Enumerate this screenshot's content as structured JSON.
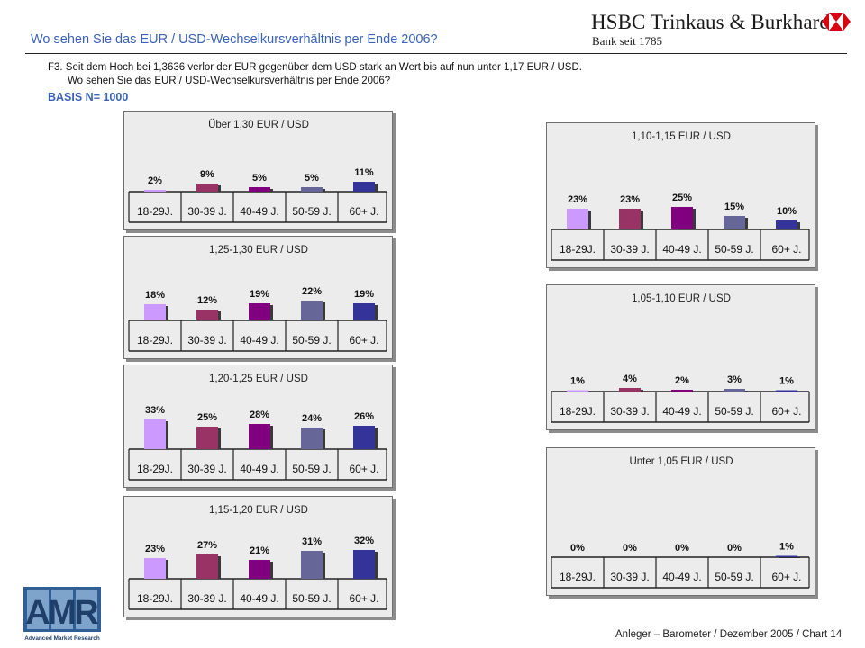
{
  "header": {
    "title": "Wo sehen Sie das EUR / USD-Wechselkursverhältnis per Ende 2006?",
    "brand_name": "HSBC Trinkaus & Burkhardt",
    "brand_sub": "Bank seit 1785",
    "brand_color": "#db0011"
  },
  "question": {
    "line1": "F3. Seit dem Hoch bei 1,3636 verlor der EUR gegenüber dem USD stark an Wert bis auf nun unter 1,17 EUR / USD.",
    "line2": "Wo sehen Sie das EUR / USD-Wechselkursverhältnis  per Ende 2006?",
    "basis": "BASIS N= 1000"
  },
  "footer": {
    "text": "Anleger – Barometer  / Dezember 2005 / Chart 14",
    "amr_logo": "AMR",
    "amr_sub": "Advanced Market Research"
  },
  "colors": [
    "#cc99ff",
    "#993366",
    "#800080",
    "#666699",
    "#333399"
  ],
  "chart_data": [
    {
      "type": "bar",
      "title": "Über 1,30 EUR / USD",
      "categories": [
        "18-29J.",
        "30-39 J.",
        "40-49 J.",
        "50-59 J.",
        "60+ J."
      ],
      "values": [
        2,
        9,
        5,
        5,
        11
      ],
      "labels": [
        "2%",
        "9%",
        "5%",
        "5%",
        "11%"
      ]
    },
    {
      "type": "bar",
      "title": "1,25-1,30 EUR / USD",
      "categories": [
        "18-29J.",
        "30-39 J.",
        "40-49 J.",
        "50-59 J.",
        "60+ J."
      ],
      "values": [
        18,
        12,
        19,
        22,
        19
      ],
      "labels": [
        "18%",
        "12%",
        "19%",
        "22%",
        "19%"
      ]
    },
    {
      "type": "bar",
      "title": "1,20-1,25 EUR / USD",
      "categories": [
        "18-29J.",
        "30-39 J.",
        "40-49 J.",
        "50-59 J.",
        "60+ J."
      ],
      "values": [
        33,
        25,
        28,
        24,
        26
      ],
      "labels": [
        "33%",
        "25%",
        "28%",
        "24%",
        "26%"
      ]
    },
    {
      "type": "bar",
      "title": "1,15-1,20 EUR / USD",
      "categories": [
        "18-29J.",
        "30-39 J.",
        "40-49 J.",
        "50-59 J.",
        "60+ J."
      ],
      "values": [
        23,
        27,
        21,
        31,
        32
      ],
      "labels": [
        "23%",
        "27%",
        "21%",
        "31%",
        "32%"
      ]
    },
    {
      "type": "bar",
      "title": "1,10-1,15 EUR / USD",
      "categories": [
        "18-29J.",
        "30-39 J.",
        "40-49 J.",
        "50-59 J.",
        "60+ J."
      ],
      "values": [
        23,
        23,
        25,
        15,
        10
      ],
      "labels": [
        "23%",
        "23%",
        "25%",
        "15%",
        "10%"
      ]
    },
    {
      "type": "bar",
      "title": "1,05-1,10 EUR / USD",
      "categories": [
        "18-29J.",
        "30-39 J.",
        "40-49 J.",
        "50-59 J.",
        "60+ J."
      ],
      "values": [
        1,
        4,
        2,
        3,
        1
      ],
      "labels": [
        "1%",
        "4%",
        "2%",
        "3%",
        "1%"
      ]
    },
    {
      "type": "bar",
      "title": "Unter 1,05 EUR / USD",
      "categories": [
        "18-29J.",
        "30-39 J.",
        "40-49 J.",
        "50-59 J.",
        "60+ J."
      ],
      "values": [
        0,
        0,
        0,
        0,
        1
      ],
      "labels": [
        "0%",
        "0%",
        "0%",
        "0%",
        "1%"
      ]
    }
  ]
}
